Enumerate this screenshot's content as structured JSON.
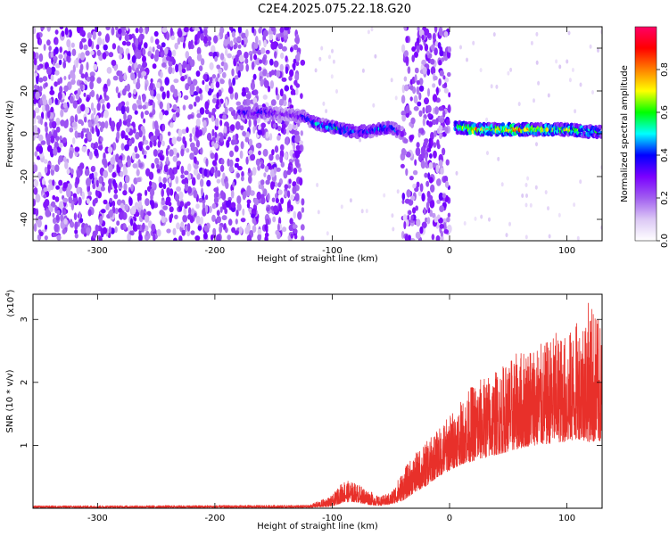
{
  "title": "C2E4.2025.075.22.18.G20",
  "colors": {
    "snr_line": "#e8302a",
    "frame": "#000000",
    "colorbar_stops": [
      "#ffffff",
      "#dcc8f5",
      "#a15ef0",
      "#7a00ff",
      "#0000ff",
      "#00ffff",
      "#00ff00",
      "#ffff00",
      "#ff8000",
      "#ff0000",
      "#ff0066"
    ]
  },
  "chart_data": [
    {
      "type": "heatmap",
      "name": "spectrogram",
      "xlabel": "Height of straight line (km)",
      "ylabel": "Frequency (Hz)",
      "xlim": [
        -355,
        130
      ],
      "ylim": [
        -50,
        50
      ],
      "xticks": [
        -300,
        -200,
        -100,
        0,
        100
      ],
      "yticks": [
        -40,
        -20,
        0,
        20,
        40
      ],
      "colorbar": {
        "label": "Normalized spectral amplitude",
        "range": [
          0.0,
          1.0
        ],
        "ticks": [
          0.0,
          0.2,
          0.4,
          0.6,
          0.8
        ]
      },
      "signal_trace": {
        "x": [
          -180,
          -160,
          -140,
          -125,
          -115,
          -100,
          -90,
          -80,
          -70,
          -60,
          -50,
          -40,
          5,
          10,
          20,
          40,
          60,
          80,
          100,
          120,
          130
        ],
        "freq": [
          10,
          10,
          9,
          8,
          5,
          3,
          2,
          1,
          1,
          2,
          3,
          0,
          3,
          3,
          2,
          2,
          2,
          2,
          2,
          1,
          1
        ],
        "peak_amplitude": [
          0.4,
          0.4,
          0.3,
          0.4,
          0.5,
          0.55,
          0.55,
          0.5,
          0.45,
          0.5,
          0.5,
          0.3,
          0.6,
          0.7,
          0.85,
          0.8,
          0.9,
          0.75,
          0.7,
          0.65,
          0.6
        ]
      },
      "noise_regions": [
        [
          -355,
          -125
        ],
        [
          -40,
          0
        ]
      ]
    },
    {
      "type": "line",
      "name": "snr",
      "xlabel": "Height of straight line (km)",
      "ylabel": "SNR (10 * v/v)",
      "y_multiplier": "(x10",
      "y_multiplier_exp": "4",
      "y_multiplier_close": ")",
      "xlim": [
        -355,
        130
      ],
      "ylim": [
        0,
        3.4
      ],
      "xticks": [
        -300,
        -200,
        -100,
        0,
        100
      ],
      "yticks": [
        1,
        2,
        3
      ],
      "envelope": {
        "x": [
          -355,
          -120,
          -100,
          -90,
          -80,
          -70,
          -60,
          -50,
          -40,
          -30,
          -20,
          -10,
          0,
          10,
          20,
          30,
          40,
          50,
          60,
          70,
          80,
          90,
          100,
          110,
          120,
          130
        ],
        "y_low": [
          0.01,
          0.01,
          0.03,
          0.1,
          0.1,
          0.06,
          0.04,
          0.06,
          0.12,
          0.25,
          0.35,
          0.5,
          0.6,
          0.7,
          0.75,
          0.8,
          0.85,
          0.9,
          0.95,
          1.0,
          1.0,
          1.05,
          1.05,
          1.1,
          1.05,
          1.05
        ],
        "y_high": [
          0.04,
          0.05,
          0.2,
          0.45,
          0.4,
          0.3,
          0.18,
          0.25,
          0.6,
          0.85,
          1.05,
          1.25,
          1.5,
          1.7,
          2.0,
          2.1,
          2.2,
          2.35,
          2.5,
          2.65,
          2.6,
          2.8,
          2.75,
          3.0,
          3.35,
          2.85
        ]
      }
    }
  ]
}
